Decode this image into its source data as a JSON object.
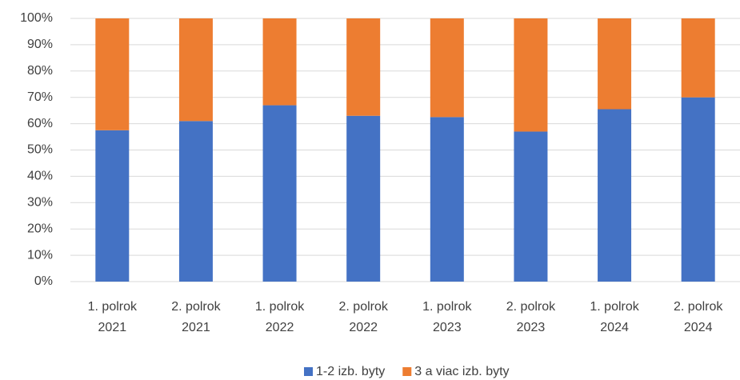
{
  "chart_data": {
    "type": "stacked_bar",
    "categories": [
      "1. polrok 2021",
      "2. polrok 2021",
      "1. polrok 2022",
      "2. polrok 2022",
      "1. polrok 2023",
      "2. polrok 2023",
      "1. polrok 2024",
      "2. polrok 2024"
    ],
    "series": [
      {
        "name": "1-2 izb. byty",
        "color": "#4472c4",
        "values": [
          57.5,
          61,
          67,
          63,
          62.5,
          57,
          65.5,
          70
        ]
      },
      {
        "name": "3 a viac izb. byty",
        "color": "#ed7d31",
        "values": [
          42.5,
          39,
          33,
          37,
          37.5,
          43,
          34.5,
          30
        ]
      }
    ],
    "ylim": [
      0,
      100
    ],
    "yticks": [
      {
        "value": 0,
        "label": "0%"
      },
      {
        "value": 10,
        "label": "10%"
      },
      {
        "value": 20,
        "label": "20%"
      },
      {
        "value": 30,
        "label": "30%"
      },
      {
        "value": 40,
        "label": "40%"
      },
      {
        "value": 50,
        "label": "50%"
      },
      {
        "value": 60,
        "label": "60%"
      },
      {
        "value": 70,
        "label": "70%"
      },
      {
        "value": 80,
        "label": "80%"
      },
      {
        "value": 90,
        "label": "90%"
      },
      {
        "value": 100,
        "label": "100%"
      }
    ],
    "grid": true,
    "legend": "bottom"
  }
}
